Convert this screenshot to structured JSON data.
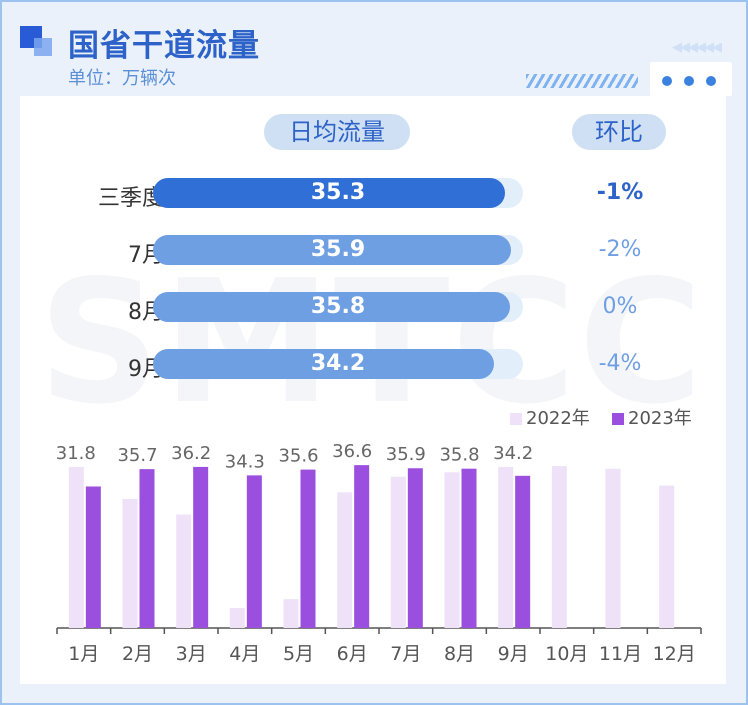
{
  "header": {
    "title": "国省干道流量",
    "unit": "单位：万辆次"
  },
  "table": {
    "col_value_label": "日均流量",
    "col_change_label": "环比",
    "rows": [
      {
        "label": "三季度",
        "value": "35.3",
        "change": "-1%"
      },
      {
        "label": "7月",
        "value": "35.9",
        "change": "-2%"
      },
      {
        "label": "8月",
        "value": "35.8",
        "change": "0%"
      },
      {
        "label": "9月",
        "value": "34.2",
        "change": "-4%"
      }
    ]
  },
  "colors": {
    "accent": "#2d62c8",
    "bar_primary": "#2f6fd6",
    "bar_secondary": "#6e9fe3",
    "s2022": "#efe2f8",
    "s2023": "#9a4fde"
  },
  "watermark": "SMTCC",
  "chart_data": {
    "type": "bar",
    "categories": [
      "1月",
      "2月",
      "3月",
      "4月",
      "5月",
      "6月",
      "7月",
      "8月",
      "9月",
      "10月",
      "11月",
      "12月"
    ],
    "series": [
      {
        "name": "2022年",
        "values": [
          36.2,
          29.0,
          25.5,
          4.5,
          6.5,
          30.5,
          34.0,
          35.0,
          36.2,
          36.4,
          35.8,
          32.0
        ]
      },
      {
        "name": "2023年",
        "values": [
          31.8,
          35.7,
          36.2,
          34.3,
          35.6,
          36.6,
          35.9,
          35.8,
          34.2,
          null,
          null,
          null
        ]
      }
    ],
    "data_labels_2023": [
      "31.8",
      "35.7",
      "36.2",
      "34.3",
      "35.6",
      "36.6",
      "35.9",
      "35.8",
      "34.2"
    ],
    "ylim": [
      0,
      40
    ],
    "legend": "top-right",
    "grid": false
  }
}
